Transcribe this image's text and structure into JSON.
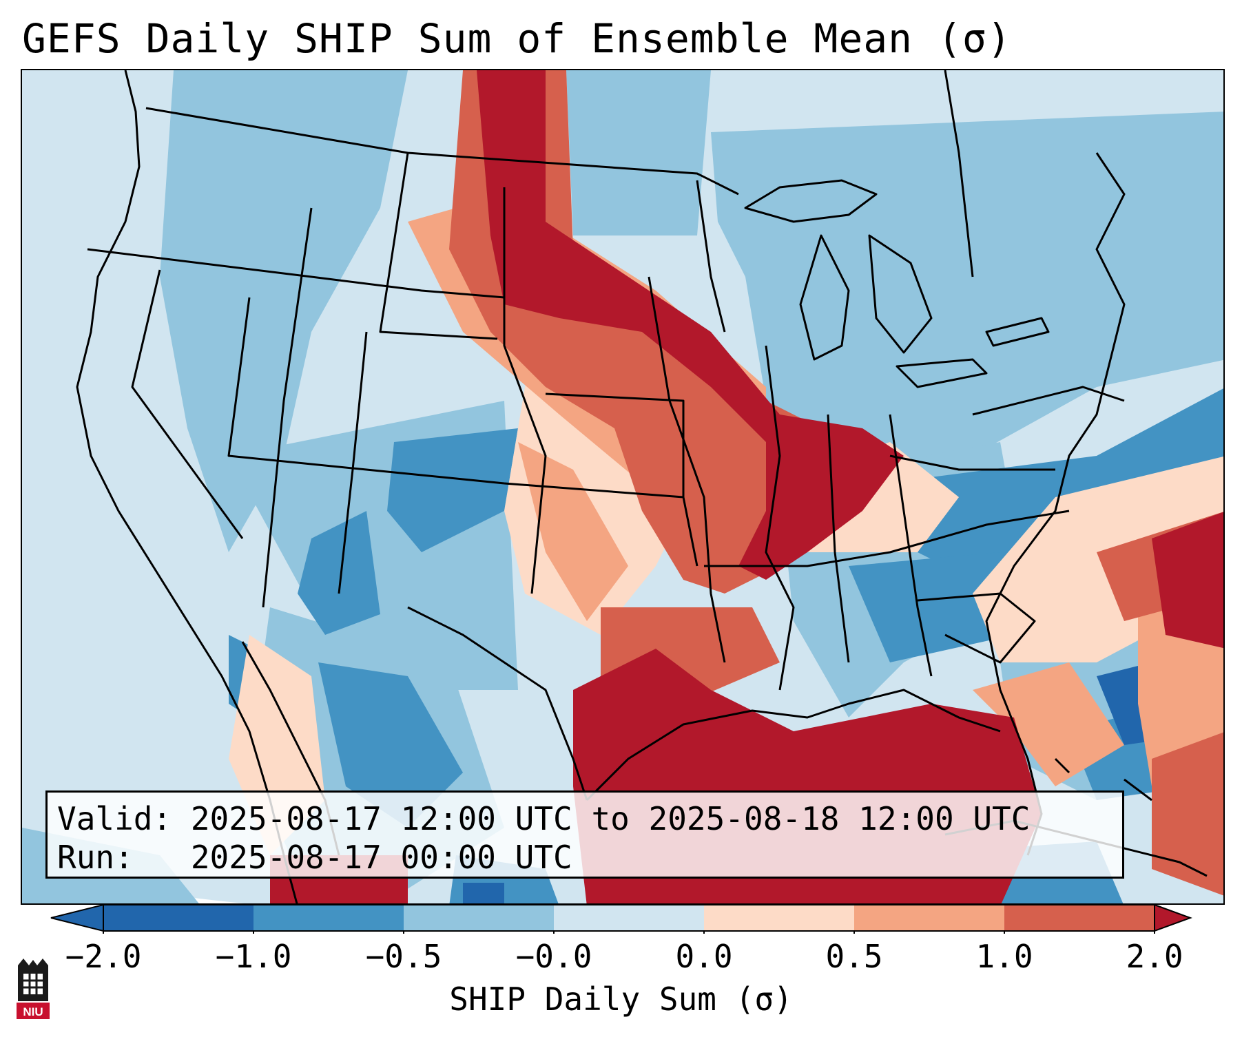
{
  "title": "GEFS Daily SHIP Sum of Ensemble Mean (σ)",
  "info": {
    "valid": "Valid: 2025-08-17 12:00 UTC to 2025-08-18 12:00 UTC",
    "run": "Run:   2025-08-17 00:00 UTC"
  },
  "colorbar": {
    "label": "SHIP Daily Sum (σ)",
    "ticks": [
      "−2.0",
      "−1.0",
      "−0.5",
      "−0.0",
      "0.0",
      "0.5",
      "1.0",
      "2.0"
    ],
    "colors": [
      "#2166ac",
      "#4393c3",
      "#92c5de",
      "#d1e5f0",
      "#fddbc7",
      "#f4a582",
      "#d6604d",
      "#b2182b"
    ]
  },
  "logo": {
    "text": "NIU"
  }
}
